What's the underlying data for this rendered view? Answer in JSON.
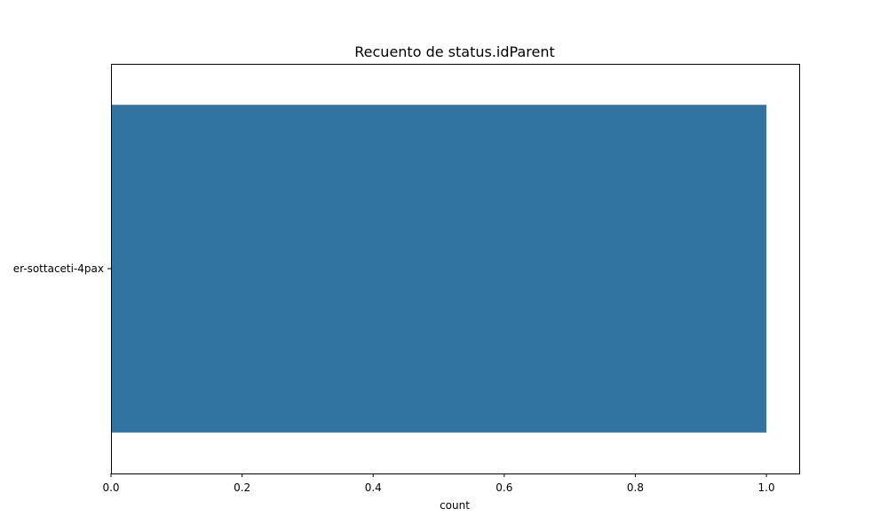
{
  "chart_data": {
    "type": "bar",
    "orientation": "horizontal",
    "title": "Recuento de status.idParent",
    "xlabel": "count",
    "ylabel": "",
    "categories": [
      "er-sottaceti-4pax"
    ],
    "values": [
      1
    ],
    "xlim": [
      0,
      1.05
    ],
    "xticks": [
      0.0,
      0.2,
      0.4,
      0.6,
      0.8,
      1.0
    ],
    "xtick_labels": [
      "0.0",
      "0.2",
      "0.4",
      "0.6",
      "0.8",
      "1.0"
    ],
    "grid": false,
    "legend": "none",
    "colors": {
      "bar": "#3274a1",
      "axes": "#000000",
      "background": "#ffffff"
    }
  }
}
